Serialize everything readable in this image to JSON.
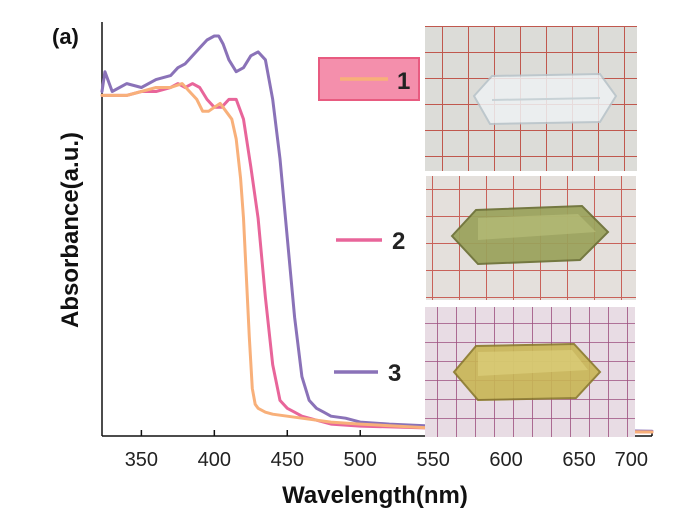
{
  "chart_data": {
    "type": "line",
    "panel_label": "(a)",
    "xlabel": "Wavelength(nm)",
    "ylabel": "Absorbance(a.u.)",
    "xlim": [
      323,
      700
    ],
    "ylim": [
      0,
      1
    ],
    "x_ticks": [
      350,
      400,
      450,
      500,
      550,
      600,
      650,
      700
    ],
    "grid": false,
    "legend_position": "right, beside crystal photos",
    "series": [
      {
        "name": "1",
        "color": "#f8b07a",
        "x": [
          323,
          330,
          340,
          350,
          360,
          370,
          378,
          383,
          388,
          392,
          396,
          400,
          404,
          408,
          412,
          415,
          418,
          420,
          422,
          424,
          426,
          428,
          430,
          435,
          440,
          450,
          460,
          480,
          500,
          550,
          600,
          650,
          700
        ],
        "y": [
          0.86,
          0.86,
          0.86,
          0.87,
          0.88,
          0.88,
          0.89,
          0.87,
          0.85,
          0.82,
          0.82,
          0.83,
          0.84,
          0.82,
          0.8,
          0.75,
          0.65,
          0.55,
          0.4,
          0.25,
          0.12,
          0.08,
          0.07,
          0.06,
          0.055,
          0.05,
          0.045,
          0.035,
          0.03,
          0.02,
          0.015,
          0.012,
          0.01
        ]
      },
      {
        "name": "2",
        "color": "#e8659a",
        "x": [
          323,
          330,
          340,
          350,
          360,
          370,
          375,
          380,
          385,
          390,
          395,
          400,
          405,
          410,
          415,
          420,
          425,
          430,
          435,
          440,
          445,
          450,
          455,
          460,
          470,
          480,
          500,
          550,
          600,
          650,
          700
        ],
        "y": [
          0.86,
          0.86,
          0.86,
          0.87,
          0.87,
          0.88,
          0.89,
          0.88,
          0.89,
          0.88,
          0.85,
          0.83,
          0.83,
          0.85,
          0.85,
          0.8,
          0.68,
          0.55,
          0.35,
          0.18,
          0.09,
          0.07,
          0.06,
          0.05,
          0.04,
          0.03,
          0.025,
          0.02,
          0.015,
          0.012,
          0.01
        ]
      },
      {
        "name": "3",
        "color": "#8a72b8",
        "x": [
          323,
          325,
          330,
          340,
          350,
          360,
          370,
          375,
          380,
          385,
          390,
          395,
          400,
          403,
          406,
          410,
          415,
          420,
          425,
          430,
          435,
          440,
          445,
          450,
          455,
          460,
          465,
          470,
          475,
          480,
          490,
          500,
          520,
          550,
          600,
          650,
          700
        ],
        "y": [
          0.87,
          0.92,
          0.87,
          0.89,
          0.88,
          0.9,
          0.91,
          0.93,
          0.94,
          0.96,
          0.98,
          1.0,
          1.01,
          1.01,
          0.99,
          0.95,
          0.92,
          0.93,
          0.96,
          0.97,
          0.95,
          0.85,
          0.7,
          0.5,
          0.3,
          0.15,
          0.09,
          0.07,
          0.06,
          0.05,
          0.045,
          0.035,
          0.03,
          0.025,
          0.02,
          0.015,
          0.012
        ]
      }
    ]
  },
  "legend": {
    "item1_label": "1",
    "item2_label": "2",
    "item3_label": "3",
    "item1_box_color": "#f27c9c"
  },
  "photos": [
    {
      "description_name": "crystal-photo-1"
    },
    {
      "description_name": "crystal-photo-2"
    },
    {
      "description_name": "crystal-photo-3"
    }
  ]
}
